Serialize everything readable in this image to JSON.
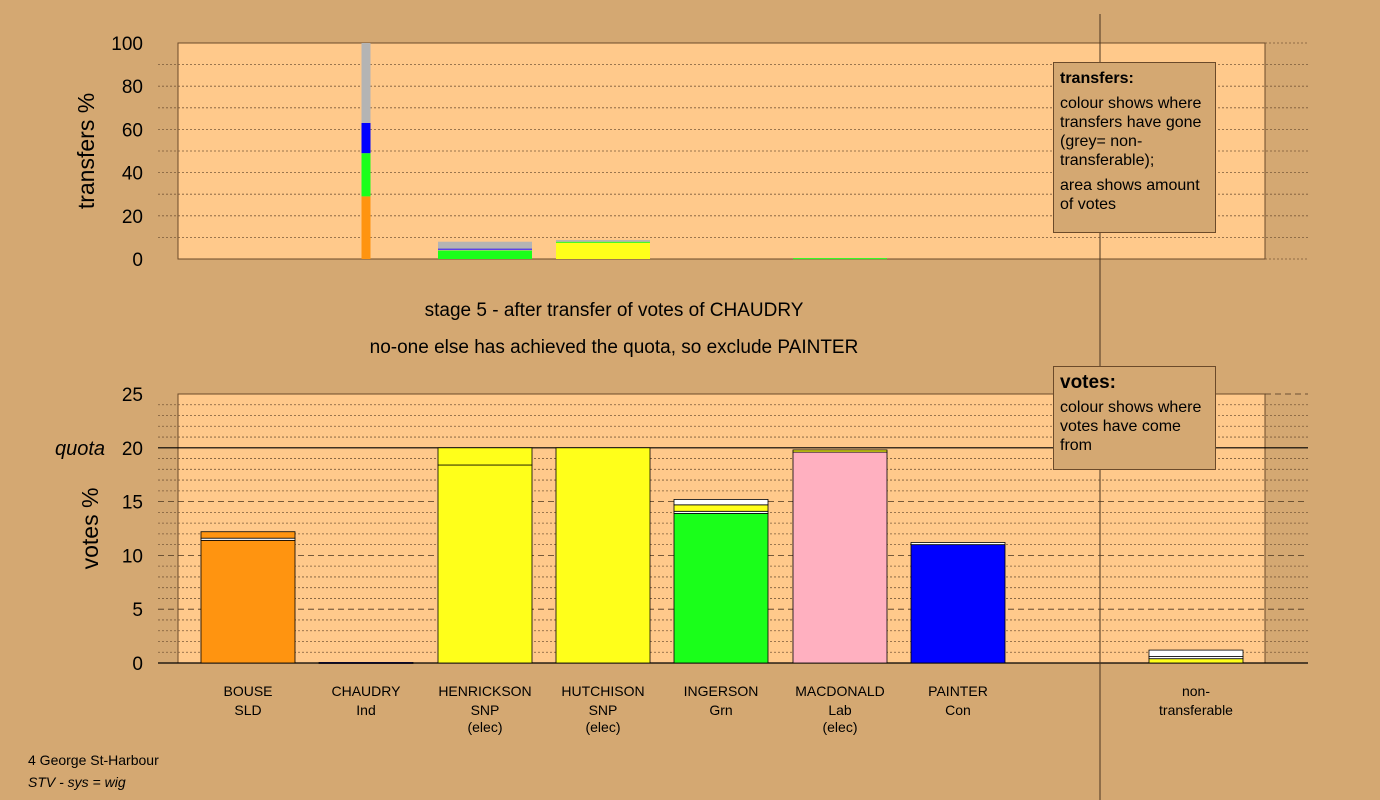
{
  "stage": {
    "title": "stage 5 - after transfer of votes of CHAUDRY",
    "subtitle": "no-one else has achieved the quota, so exclude PAINTER"
  },
  "legend_transfers": {
    "title": "transfers:",
    "text1": "colour shows where transfers have gone (grey= non-transferable);",
    "text2": "area shows amount of votes"
  },
  "legend_votes": {
    "title": "votes:",
    "text1": "colour shows where votes have come from"
  },
  "footer": {
    "line1": "4 George St-Harbour",
    "line2": "STV - sys = wig"
  },
  "colors": {
    "background": "#d4a872",
    "plot_bg": "#ffc98b",
    "SLD": "#ff9410",
    "Ind": "#0000ff",
    "SNP": "#ffff1a",
    "Grn": "#1aff1a",
    "Lab": "#ffb0c0",
    "Con": "#0000ff",
    "nontransferable": "#b4b4b4"
  },
  "chart_data": [
    {
      "type": "bar",
      "ylabel": "transfers %",
      "ylim": [
        0,
        100
      ],
      "yticks": [
        0,
        20,
        40,
        60,
        80,
        100
      ],
      "grid": true,
      "columns": [
        {
          "category": "BOUSE",
          "segments": []
        },
        {
          "category": "CHAUDRY",
          "segments": [
            {
              "to": "BOUSE",
              "color": "#ff9410",
              "value": 29
            },
            {
              "to": "INGERSON",
              "color": "#1aff1a",
              "value": 20
            },
            {
              "to": "PAINTER",
              "color": "#0000ff",
              "value": 14
            },
            {
              "to": "non-transferable",
              "color": "#b4b4b4",
              "value": 37
            }
          ]
        },
        {
          "category": "HENRICKSON",
          "segments": [
            {
              "to": "INGERSON",
              "color": "#1aff1a",
              "value": 4
            },
            {
              "to": "MACDONALD",
              "color": "#ffb0c0",
              "value": 0.5
            },
            {
              "to": "PAINTER",
              "color": "#0000ff",
              "value": 0.3
            },
            {
              "to": "non-transferable",
              "color": "#b4b4b4",
              "value": 3.2
            }
          ]
        },
        {
          "category": "HUTCHISON",
          "segments": [
            {
              "to": "HENRICKSON",
              "color": "#ffff1a",
              "value": 7.5
            },
            {
              "to": "INGERSON",
              "color": "#1aff1a",
              "value": 0.5
            },
            {
              "to": "non-transferable",
              "color": "#b4b4b4",
              "value": 0.8
            }
          ]
        },
        {
          "category": "INGERSON",
          "segments": []
        },
        {
          "category": "MACDONALD",
          "segments": [
            {
              "to": "INGERSON",
              "color": "#1aff1a",
              "value": 0.4
            }
          ]
        },
        {
          "category": "PAINTER",
          "segments": []
        }
      ]
    },
    {
      "type": "bar",
      "ylabel": "votes %",
      "ylim": [
        0,
        25
      ],
      "yticks": [
        0,
        5,
        10,
        15,
        20,
        25
      ],
      "quota": 20,
      "quota_label": "quota",
      "grid": true,
      "categories": [
        {
          "name": "BOUSE",
          "party": "SLD",
          "status": ""
        },
        {
          "name": "CHAUDRY",
          "party": "Ind",
          "status": ""
        },
        {
          "name": "HENRICKSON",
          "party": "SNP",
          "status": "(elec)"
        },
        {
          "name": "HUTCHISON",
          "party": "SNP",
          "status": "(elec)"
        },
        {
          "name": "INGERSON",
          "party": "Grn",
          "status": ""
        },
        {
          "name": "MACDONALD",
          "party": "Lab",
          "status": "(elec)"
        },
        {
          "name": "PAINTER",
          "party": "Con",
          "status": ""
        }
      ],
      "nontransferable_label": "non-transferable",
      "stacks": [
        [
          {
            "from": "BOUSE",
            "color": "#ff9410",
            "value": 11.4
          },
          {
            "from": "transfers",
            "color": "#ffffff",
            "value": 0.2
          },
          {
            "from": "CHAUDRY",
            "color": "#ff9410",
            "value": 0.6
          }
        ],
        [
          {
            "from": "CHAUDRY",
            "color": "#0000ff",
            "value": 0.05
          }
        ],
        [
          {
            "from": "HENRICKSON",
            "color": "#ffff1a",
            "value": 18.4
          },
          {
            "from": "HUTCHISON",
            "color": "#ffff1a",
            "value": 1.6
          }
        ],
        [
          {
            "from": "HUTCHISON",
            "color": "#ffff1a",
            "value": 20
          }
        ],
        [
          {
            "from": "INGERSON",
            "color": "#1aff1a",
            "value": 13.9
          },
          {
            "from": "transfers",
            "color": "#ffffff",
            "value": 0.2
          },
          {
            "from": "HENRICKSON",
            "color": "#ffff1a",
            "value": 0.6
          },
          {
            "from": "CHAUDRY",
            "color": "#ffffff",
            "value": 0.5
          }
        ],
        [
          {
            "from": "MACDONALD",
            "color": "#ffb0c0",
            "value": 19.6
          },
          {
            "from": "HENRICKSON",
            "color": "#ffff1a",
            "value": 0.2
          }
        ],
        [
          {
            "from": "PAINTER",
            "color": "#0000ff",
            "value": 11.0
          },
          {
            "from": "transfers",
            "color": "#ffffff",
            "value": 0.2
          }
        ],
        [
          {
            "from": "HENRICKSON",
            "color": "#ffff1a",
            "value": 0.4
          },
          {
            "from": "transfers",
            "color": "#ffffff",
            "value": 0.2
          },
          {
            "from": "HUTCHISON",
            "color": "#ffffff",
            "value": 0.6
          }
        ]
      ]
    }
  ]
}
